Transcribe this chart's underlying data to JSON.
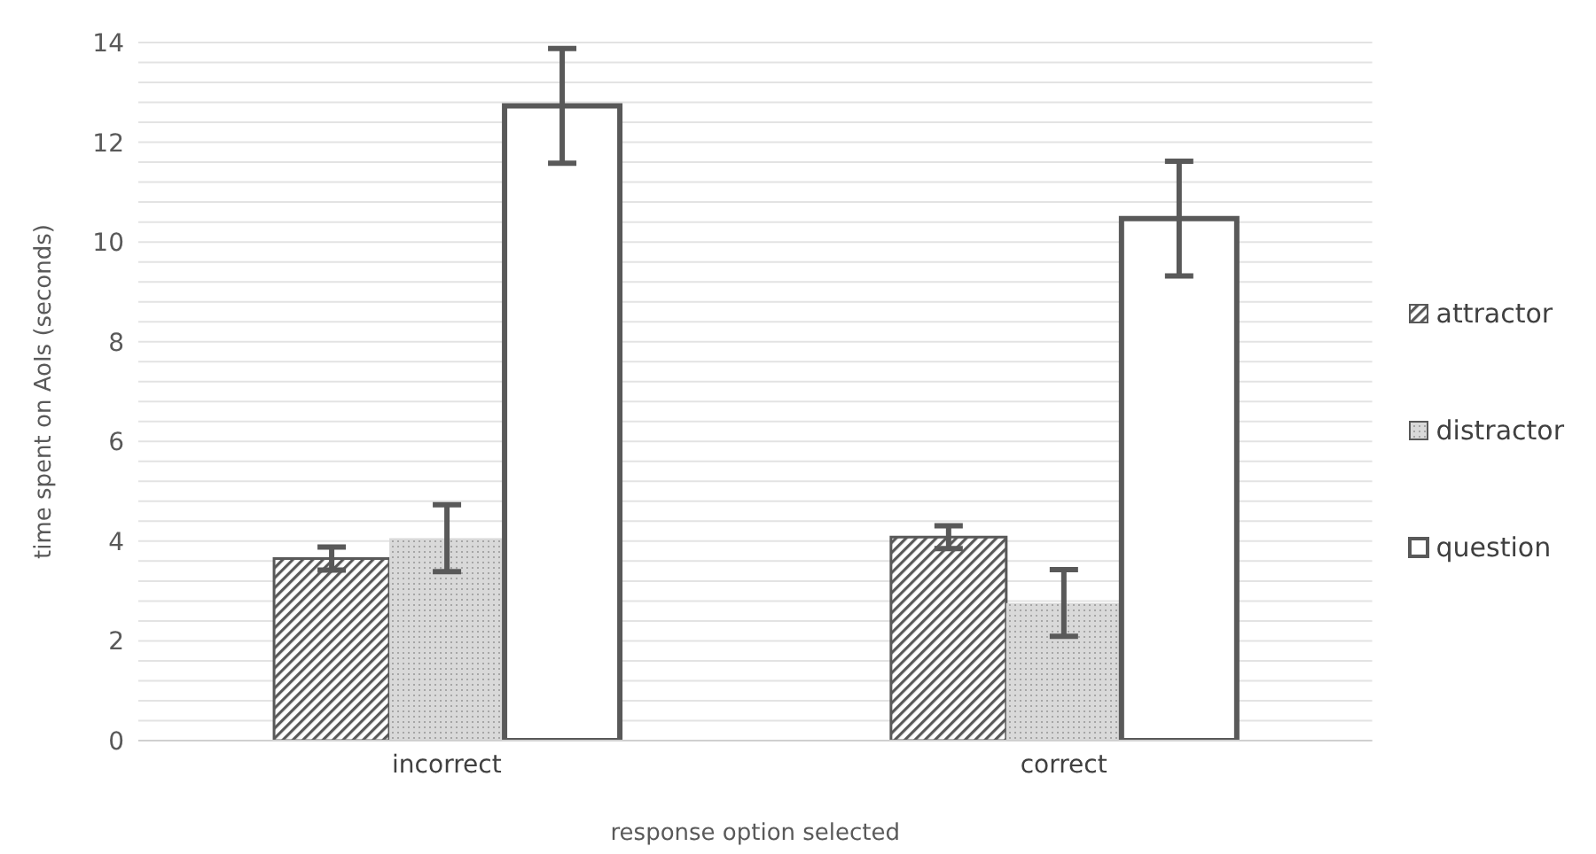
{
  "chart_data": {
    "type": "bar",
    "xlabel": "response option selected",
    "ylabel": "time spent on AoIs (seconds)",
    "categories": [
      "incorrect",
      "correct"
    ],
    "series": [
      {
        "name": "attractor",
        "color": "#595959",
        "values": [
          3.65,
          4.08
        ],
        "errors": [
          0.23,
          0.23
        ]
      },
      {
        "name": "distractor",
        "color": "#d9d9d9",
        "values": [
          4.06,
          2.76
        ],
        "errors": [
          0.67,
          0.67
        ]
      },
      {
        "name": "question",
        "color": "#ffffff",
        "values": [
          12.73,
          10.47
        ],
        "errors": [
          1.15,
          1.15
        ]
      }
    ],
    "ylim": [
      0,
      14
    ],
    "yticks": [
      0,
      {
        "value": 0.4,
        "label": null
      },
      {
        "value": 0.8,
        "label": null
      },
      {
        "value": 1.2,
        "label": null
      },
      {
        "value": 1.6,
        "label": null
      },
      2,
      {
        "value": 2.4,
        "label": null
      },
      {
        "value": 2.8,
        "label": null
      },
      {
        "value": 3.2,
        "label": null
      },
      {
        "value": 3.6,
        "label": null
      },
      4,
      {
        "value": 4.4,
        "label": null
      },
      {
        "value": 4.8,
        "label": null
      },
      {
        "value": 5.2,
        "label": null
      },
      {
        "value": 5.6,
        "label": null
      },
      6,
      {
        "value": 6.4,
        "label": null
      },
      {
        "value": 6.8,
        "label": null
      },
      {
        "value": 7.2,
        "label": null
      },
      {
        "value": 7.6,
        "label": null
      },
      8,
      {
        "value": 8.4,
        "label": null
      },
      {
        "value": 8.8,
        "label": null
      },
      {
        "value": 9.2,
        "label": null
      },
      {
        "value": 9.6,
        "label": null
      },
      10,
      {
        "value": 10.4,
        "label": null
      },
      {
        "value": 10.8,
        "label": null
      },
      {
        "value": 11.2,
        "label": null
      },
      {
        "value": 11.6,
        "label": null
      },
      12,
      {
        "value": 12.4,
        "label": null
      },
      {
        "value": 12.8,
        "label": null
      },
      {
        "value": 13.2,
        "label": null
      },
      {
        "value": 13.6,
        "label": null
      },
      14
    ],
    "grid": "y",
    "legend": "right"
  }
}
